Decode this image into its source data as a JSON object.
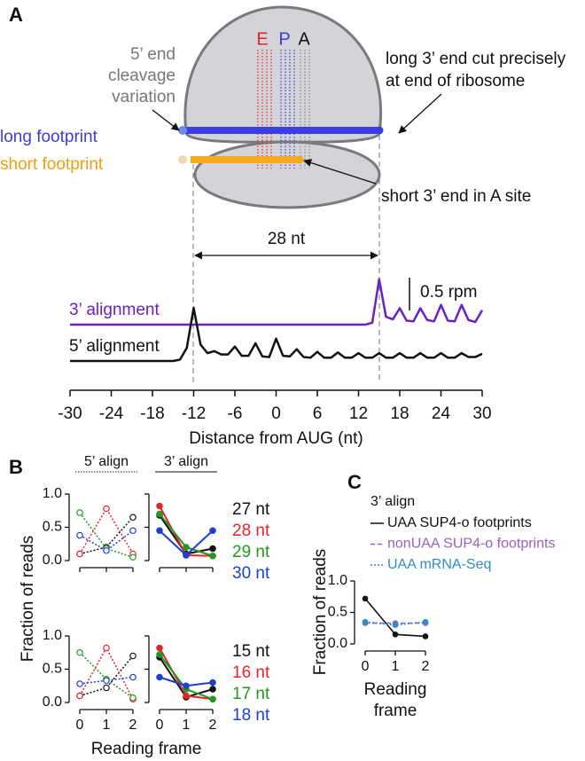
{
  "panel_labels": [
    "A",
    "B",
    "C"
  ],
  "diagram": {
    "sites": [
      "E",
      "P",
      "A"
    ],
    "cleavage_note": [
      "5’ end",
      "cleavage",
      "variation"
    ],
    "long_cut_note": [
      "long 3’ end cut precisely",
      "at end of ribosome"
    ],
    "long_footprint": "long footprint",
    "short_footprint": "short footprint",
    "short_note": "short 3’ end in A site",
    "length_label": "28 nt"
  },
  "chart_data": [
    {
      "type": "line",
      "xlabel": "Distance from AUG (nt)",
      "x": [
        -30,
        -29,
        -28,
        -27,
        -26,
        -25,
        -24,
        -23,
        -22,
        -21,
        -20,
        -19,
        -18,
        -17,
        -16,
        -15,
        -14,
        -13,
        -12,
        -11,
        -10,
        -9,
        -8,
        -7,
        -6,
        -5,
        -4,
        -3,
        -2,
        -1,
        0,
        1,
        2,
        3,
        4,
        5,
        6,
        7,
        8,
        9,
        10,
        11,
        12,
        13,
        14,
        15,
        16,
        17,
        18,
        19,
        20,
        21,
        22,
        23,
        24,
        25,
        26,
        27,
        28,
        29,
        30
      ],
      "xlim": [
        -30,
        30
      ],
      "xticks": [
        -30,
        -24,
        -18,
        -12,
        -6,
        0,
        6,
        12,
        18,
        24,
        30
      ],
      "scale_bar": {
        "value": 0.5,
        "label": "0.5 rpm"
      },
      "series": [
        {
          "name": "3’ alignment",
          "color": "#6a1fc8",
          "values": [
            0,
            0,
            0,
            0,
            0,
            0,
            0,
            0,
            0,
            0,
            0,
            0,
            0,
            0,
            0,
            0,
            0,
            0,
            0,
            0,
            0,
            0,
            0,
            0,
            0,
            0,
            0,
            0,
            0,
            0,
            0,
            0,
            0,
            0,
            0,
            0,
            0,
            0,
            0,
            0,
            0,
            0,
            0,
            0,
            0.03,
            0.69,
            0.12,
            0.08,
            0.25,
            0.06,
            0.05,
            0.25,
            0.07,
            0.05,
            0.3,
            0.06,
            0.05,
            0.3,
            0.07,
            0.04,
            0.22
          ]
        },
        {
          "name": "5’ alignment",
          "color": "#111111",
          "values": [
            0,
            0,
            0,
            0,
            0,
            0,
            0,
            0,
            0,
            0,
            0,
            0,
            0,
            0,
            0,
            0,
            0.02,
            0.2,
            0.81,
            0.25,
            0.12,
            0.15,
            0.1,
            0.1,
            0.22,
            0.08,
            0.08,
            0.27,
            0.07,
            0.06,
            0.34,
            0.08,
            0.07,
            0.18,
            0.06,
            0.05,
            0.14,
            0.05,
            0.05,
            0.13,
            0.05,
            0.05,
            0.12,
            0.05,
            0.05,
            0.12,
            0.05,
            0.05,
            0.12,
            0.05,
            0.05,
            0.12,
            0.05,
            0.05,
            0.12,
            0.05,
            0.05,
            0.12,
            0.06,
            0.06,
            0.11
          ]
        }
      ]
    },
    {
      "type": "line-grid",
      "ylabel": "Fraction of reads",
      "xlabel": "Reading frame",
      "columns": [
        "5’ align",
        "3’ align"
      ],
      "x": [
        0,
        1,
        2
      ],
      "xticks": [
        0,
        1,
        2
      ],
      "ylim": [
        0,
        1
      ],
      "yticks": [
        {
          "value": 0,
          "label": "0.0"
        },
        {
          "value": 0.5,
          "label": "0.5"
        },
        {
          "value": 1,
          "label": "1.0"
        }
      ],
      "rows": [
        {
          "series": [
            {
              "name": "27 nt",
              "color": "#111111",
              "values": [
                [
                  0.1,
                  0.2,
                  0.65
                ],
                [
                  0.68,
                  0.1,
                  0.18
                ]
              ]
            },
            {
              "name": "28 nt",
              "color": "#e8242b",
              "values": [
                [
                  0.1,
                  0.78,
                  0.1
                ],
                [
                  0.82,
                  0.08,
                  0.07
                ]
              ]
            },
            {
              "name": "29 nt",
              "color": "#1f9a1f",
              "values": [
                [
                  0.72,
                  0.18,
                  0.05
                ],
                [
                  0.7,
                  0.2,
                  0.07
                ]
              ]
            },
            {
              "name": "30 nt",
              "color": "#1d3fd0",
              "values": [
                [
                  0.38,
                  0.15,
                  0.45
                ],
                [
                  0.45,
                  0.08,
                  0.45
                ]
              ]
            }
          ]
        },
        {
          "series": [
            {
              "name": "15 nt",
              "color": "#111111",
              "values": [
                [
                  0.1,
                  0.22,
                  0.7
                ],
                [
                  0.68,
                  0.08,
                  0.2
                ]
              ]
            },
            {
              "name": "16 nt",
              "color": "#e8242b",
              "values": [
                [
                  0.1,
                  0.82,
                  0.05
                ],
                [
                  0.82,
                  0.1,
                  0.05
                ]
              ]
            },
            {
              "name": "17 nt",
              "color": "#1f9a1f",
              "values": [
                [
                  0.75,
                  0.35,
                  0.07
                ],
                [
                  0.72,
                  0.2,
                  0.05
                ]
              ]
            },
            {
              "name": "18 nt",
              "color": "#1d3fd0",
              "values": [
                [
                  0.28,
                  0.33,
                  0.38
                ],
                [
                  0.38,
                  0.25,
                  0.3
                ]
              ]
            }
          ]
        }
      ]
    },
    {
      "type": "line",
      "title": "3’ align",
      "ylabel": "Fraction of reads",
      "xlabel": [
        "Reading",
        "frame"
      ],
      "x": [
        0,
        1,
        2
      ],
      "xticks": [
        0,
        1,
        2
      ],
      "ylim": [
        0,
        1
      ],
      "yticks": [
        {
          "value": 0,
          "label": "0.0"
        },
        {
          "value": 0.5,
          "label": "0.5"
        },
        {
          "value": 1,
          "label": "1.0"
        }
      ],
      "series": [
        {
          "name": "UAA SUP4-o footprints",
          "color": "#111111",
          "style": "solid",
          "values": [
            0.72,
            0.15,
            0.12
          ]
        },
        {
          "name": "nonUAA SUP4-o footprints",
          "color": "#9b5fc0",
          "style": "dashed",
          "values": [
            0.33,
            0.33,
            0.33
          ]
        },
        {
          "name": "UAA mRNA-Seq",
          "color": "#2d8fc0",
          "style": "dotted",
          "values": [
            0.35,
            0.3,
            0.35
          ]
        }
      ]
    }
  ]
}
